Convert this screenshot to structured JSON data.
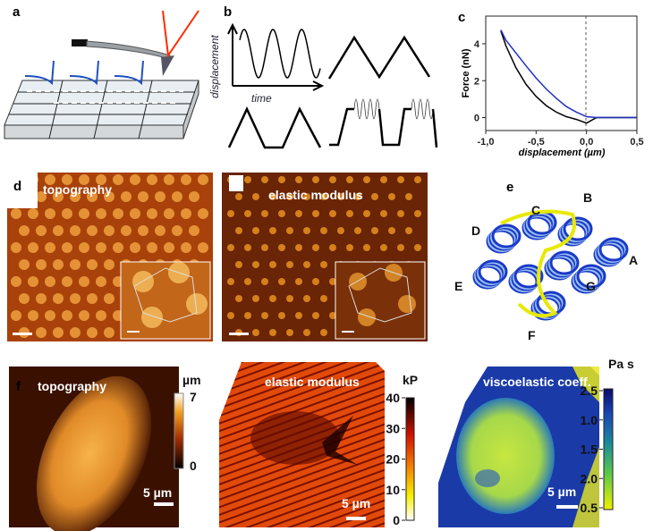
{
  "panels": {
    "a": {
      "label": "a"
    },
    "b": {
      "label": "b",
      "ylabel": "displacement",
      "xlabel": "time"
    },
    "c": {
      "label": "c"
    },
    "d": {
      "label": "d",
      "left_title": "topography",
      "right_title": "elastic modulus"
    },
    "e": {
      "label": "e",
      "helices": [
        "A",
        "B",
        "C",
        "D",
        "E",
        "F",
        "G"
      ]
    },
    "f": {
      "label": "f",
      "topography": {
        "title": "topography",
        "unit": "µm",
        "ticks": [
          "7",
          "0"
        ],
        "scale": "5 µm"
      },
      "elastic": {
        "title": "elastic modulus",
        "unit": "kP",
        "ticks": [
          "40",
          "30",
          "20",
          "10",
          "0"
        ],
        "scale": "5 µm"
      },
      "viscoelastic": {
        "title": "viscoelastic coeff.",
        "unit": "Pa s",
        "ticks": [
          "2.5",
          "1.0",
          "1.5",
          "2.0",
          "0.5"
        ],
        "scale": "5 µm"
      }
    }
  },
  "colors": {
    "approach": "#000000",
    "retract": "#1f2fbf",
    "laser": "#ff2a00",
    "curve_blue": "#2a5fc4"
  },
  "chart_data": {
    "type": "line",
    "title": "",
    "xlabel": "displacement (µm)",
    "ylabel": "Force (nN)",
    "xlim": [
      -1.0,
      0.5
    ],
    "ylim": [
      -0.7,
      5.5
    ],
    "xticks": [
      "-1,0",
      "-0,5",
      "0,0",
      "0,5"
    ],
    "yticks": [
      "0",
      "2",
      "4"
    ],
    "grid": false,
    "series": [
      {
        "x": [
          -0.85,
          -0.8,
          -0.7,
          -0.6,
          -0.5,
          -0.4,
          -0.3,
          -0.2,
          -0.1,
          0.0,
          0.1,
          0.3,
          0.5
        ],
        "y": [
          4.7,
          3.9,
          2.7,
          1.8,
          1.15,
          0.65,
          0.3,
          0.05,
          -0.1,
          -0.3,
          0.0,
          0.0,
          0.0
        ]
      },
      {
        "x": [
          -0.85,
          -0.8,
          -0.7,
          -0.6,
          -0.5,
          -0.4,
          -0.3,
          -0.2,
          -0.1,
          0.0,
          0.1,
          0.3,
          0.5
        ],
        "y": [
          4.75,
          4.2,
          3.5,
          2.8,
          2.15,
          1.55,
          1.05,
          0.6,
          0.3,
          0.05,
          0.0,
          0.0,
          0.0
        ]
      }
    ]
  }
}
